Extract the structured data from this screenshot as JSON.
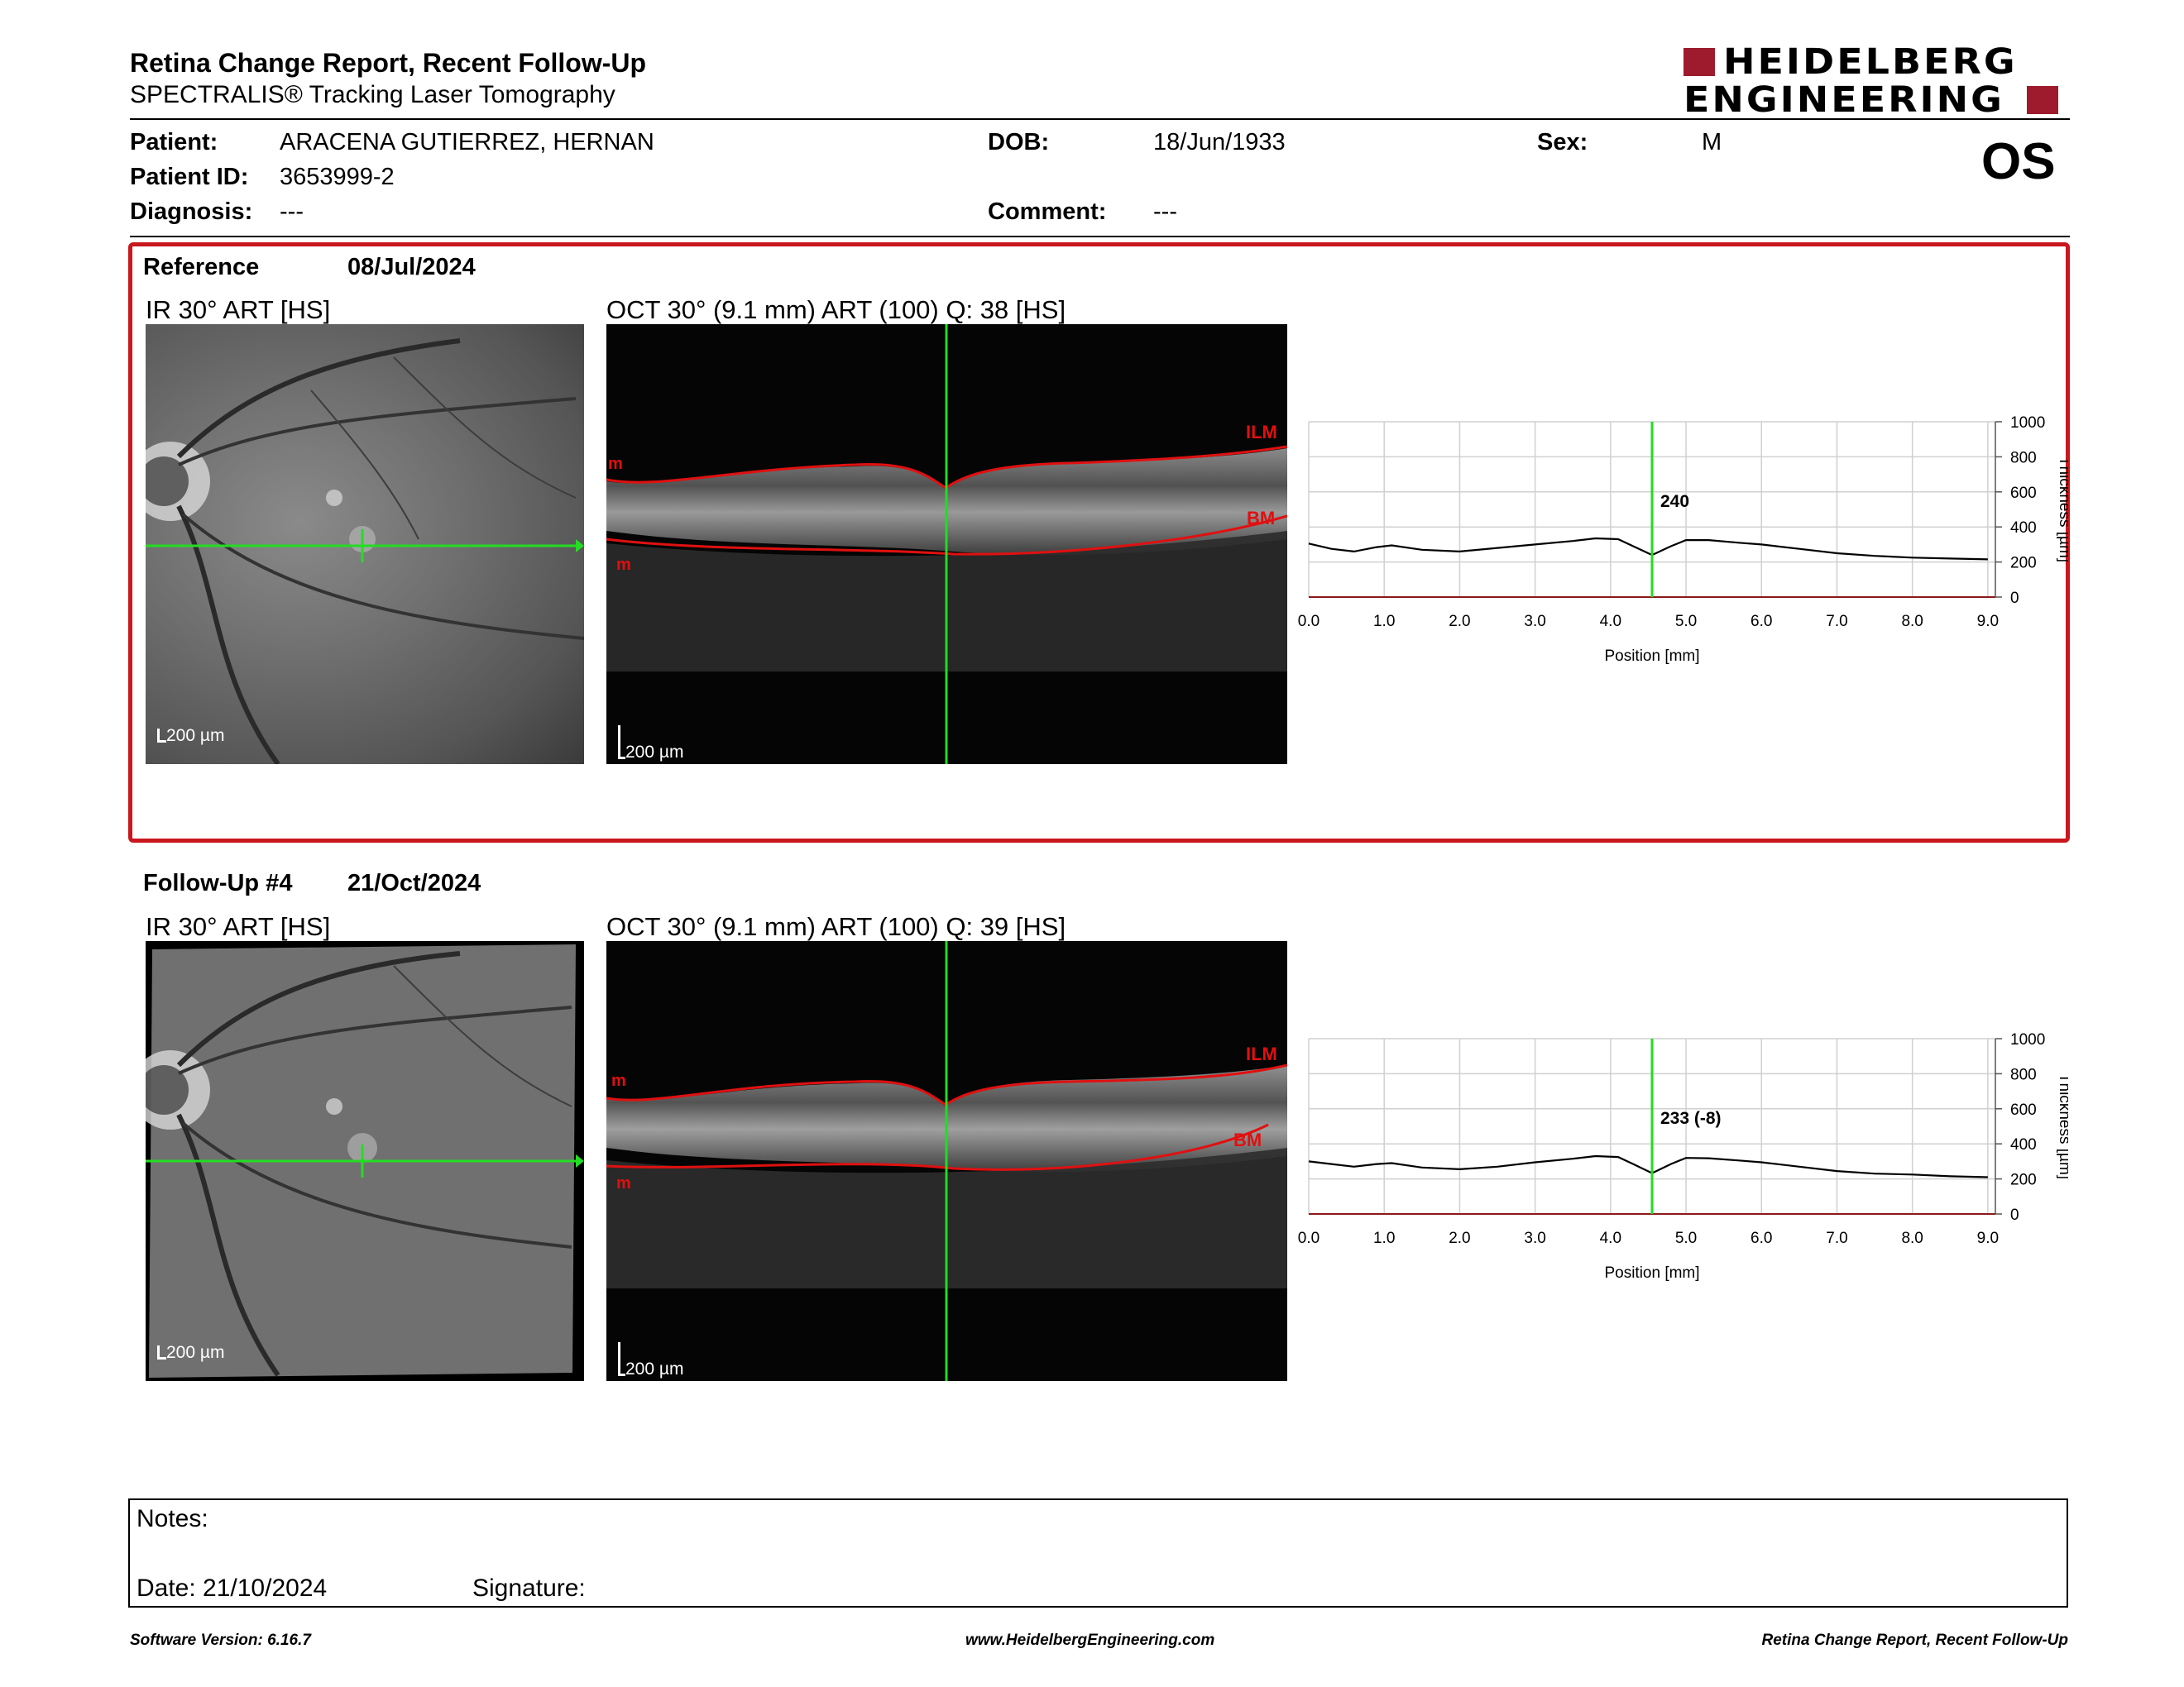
{
  "header": {
    "title": "Retina Change Report, Recent Follow-Up",
    "subtitle": "SPECTRALIS® Tracking Laser Tomography",
    "logo_line1": "HEIDELBERG",
    "logo_line2": "ENGINEERING",
    "eye": "OS"
  },
  "patient": {
    "patient_label": "Patient:",
    "patient_value": "ARACENA GUTIERREZ, HERNAN",
    "dob_label": "DOB:",
    "dob_value": "18/Jun/1933",
    "sex_label": "Sex:",
    "sex_value": "M",
    "id_label": "Patient ID:",
    "id_value": "3653999-2",
    "diagnosis_label": "Diagnosis:",
    "diagnosis_value": "---",
    "comment_label": "Comment:",
    "comment_value": "---"
  },
  "reference": {
    "label": "Reference",
    "date": "08/Jul/2024",
    "ir_caption": "IR 30° ART [HS]",
    "oct_caption": "OCT 30° (9.1 mm) ART (100) Q: 38 [HS]",
    "scale": "200 µm",
    "ilm": "ILM",
    "bm": "BM",
    "m_top": "m",
    "m_bottom": "m"
  },
  "followup": {
    "label": "Follow-Up #4",
    "date": "21/Oct/2024",
    "ir_caption": "IR 30° ART [HS]",
    "oct_caption": "OCT 30° (9.1 mm) ART (100) Q: 39 [HS]",
    "scale": "200 µm",
    "ilm": "ILM",
    "bm": "BM",
    "m_top": "m",
    "m_bottom": "m"
  },
  "chart_data": [
    {
      "type": "line",
      "xlabel": "Position [mm]",
      "ylabel": "Thickness [µm]",
      "xlim": [
        0,
        9.1
      ],
      "ylim": [
        0,
        1000
      ],
      "x_ticks": [
        "0.0",
        "1.0",
        "2.0",
        "3.0",
        "4.0",
        "5.0",
        "6.0",
        "7.0",
        "8.0",
        "9.0"
      ],
      "y_ticks": [
        "0",
        "200",
        "400",
        "600",
        "800",
        "1000"
      ],
      "grid": true,
      "marker_x": 4.55,
      "marker_label": "240",
      "series": [
        {
          "x": [
            0,
            0.3,
            0.6,
            0.9,
            1.1,
            1.5,
            2.0,
            2.5,
            3.0,
            3.5,
            3.8,
            4.1,
            4.3,
            4.55,
            4.8,
            5.0,
            5.3,
            5.7,
            6.0,
            6.5,
            7.0,
            7.5,
            8.0,
            8.5,
            9.0
          ],
          "values": [
            305,
            275,
            260,
            285,
            295,
            270,
            260,
            280,
            300,
            320,
            335,
            330,
            290,
            240,
            290,
            325,
            325,
            310,
            300,
            275,
            250,
            235,
            225,
            220,
            215
          ]
        }
      ]
    },
    {
      "type": "line",
      "xlabel": "Position [mm]",
      "ylabel": "Thickness [µm]",
      "xlim": [
        0,
        9.1
      ],
      "ylim": [
        0,
        1000
      ],
      "x_ticks": [
        "0.0",
        "1.0",
        "2.0",
        "3.0",
        "4.0",
        "5.0",
        "6.0",
        "7.0",
        "8.0",
        "9.0"
      ],
      "y_ticks": [
        "0",
        "200",
        "400",
        "600",
        "800",
        "1000"
      ],
      "grid": true,
      "marker_x": 4.55,
      "marker_label": "233 (-8)",
      "series": [
        {
          "x": [
            0,
            0.3,
            0.6,
            0.9,
            1.1,
            1.5,
            2.0,
            2.5,
            3.0,
            3.5,
            3.8,
            4.1,
            4.3,
            4.55,
            4.8,
            5.0,
            5.3,
            5.7,
            6.0,
            6.5,
            7.0,
            7.5,
            8.0,
            8.5,
            9.0
          ],
          "values": [
            300,
            285,
            270,
            285,
            290,
            265,
            255,
            270,
            295,
            315,
            330,
            325,
            285,
            233,
            285,
            320,
            318,
            305,
            295,
            270,
            245,
            230,
            225,
            215,
            210
          ]
        }
      ]
    }
  ],
  "notes": {
    "notes_label": "Notes:",
    "date_label": "Date: 21/10/2024",
    "signature_label": "Signature:"
  },
  "footer": {
    "software": "Software Version: 6.16.7",
    "website": "www.HeidelbergEngineering.com",
    "report_name": "Retina Change Report, Recent Follow-Up"
  }
}
